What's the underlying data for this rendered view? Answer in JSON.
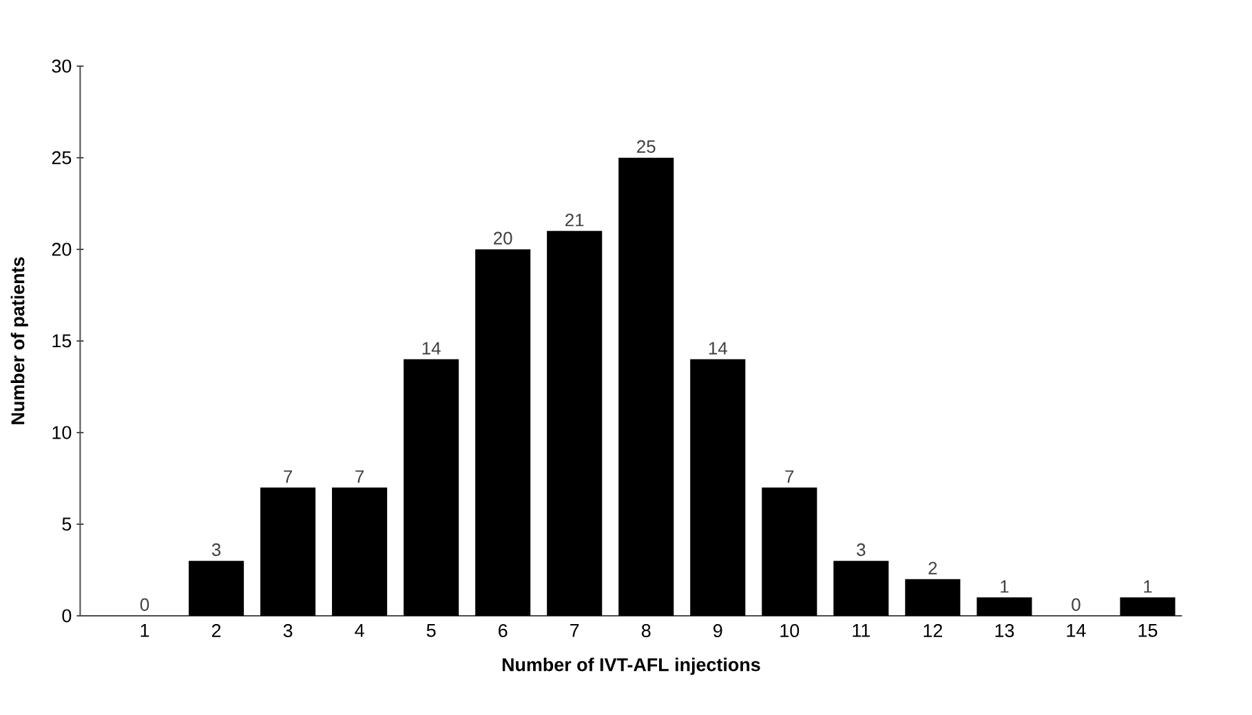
{
  "chart_data": {
    "type": "bar",
    "xlabel": "Number of IVT-AFL injections",
    "ylabel": "Number of patients",
    "categories": [
      "1",
      "2",
      "3",
      "4",
      "5",
      "6",
      "7",
      "8",
      "9",
      "10",
      "11",
      "12",
      "13",
      "14",
      "15"
    ],
    "values": [
      0,
      3,
      7,
      7,
      14,
      20,
      21,
      25,
      14,
      7,
      3,
      2,
      1,
      0,
      1
    ],
    "value_labels": [
      "0",
      "3",
      "7",
      "7",
      "14",
      "20",
      "21",
      "25",
      "14",
      "7",
      "3",
      "2",
      "1",
      "0",
      "1"
    ],
    "color": "#000000",
    "ylim": [
      0,
      30
    ],
    "yticks": [
      0,
      5,
      10,
      15,
      20,
      25,
      30
    ]
  }
}
